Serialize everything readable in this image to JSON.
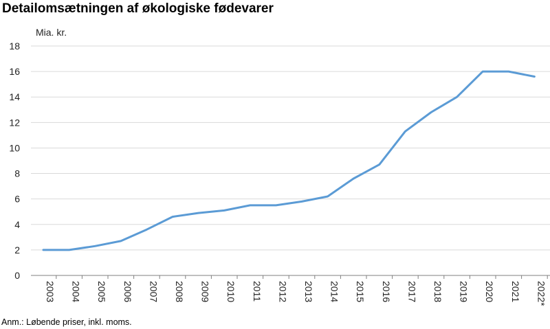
{
  "title": "Detailomsætningen af økologiske fødevarer",
  "footnote": "Anm.: Løbende priser, inkl. moms.",
  "chart_data": {
    "type": "line",
    "title": "Detailomsætningen af økologiske fødevarer",
    "ylabel": "Mia. kr.",
    "xlabel": "",
    "ylim": [
      0,
      18
    ],
    "yticks": [
      0,
      2,
      4,
      6,
      8,
      10,
      12,
      14,
      16,
      18
    ],
    "grid": true,
    "legend": "none",
    "categories": [
      "2003",
      "2004",
      "2005",
      "2006",
      "2007",
      "2008",
      "2009",
      "2010",
      "2011",
      "2012",
      "2013",
      "2014",
      "2015",
      "2016",
      "2017",
      "2018",
      "2019",
      "2020",
      "2021",
      "2022*"
    ],
    "series": [
      {
        "color": "#5b9bd5",
        "values": [
          2.0,
          2.0,
          2.3,
          2.7,
          3.6,
          4.6,
          4.9,
          5.1,
          5.5,
          5.5,
          5.8,
          6.2,
          7.6,
          8.7,
          11.3,
          12.8,
          14.0,
          16.0,
          16.0,
          15.6
        ]
      }
    ]
  }
}
